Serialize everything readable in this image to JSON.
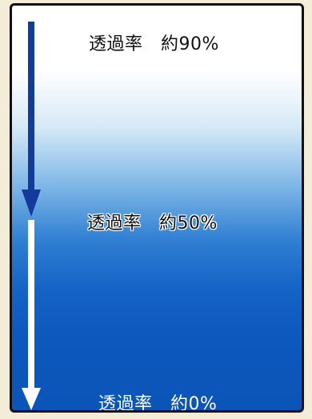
{
  "labels": {
    "top": "透過率　約90%",
    "middle": "透過率　約50%",
    "bottom": "透過率　約0%"
  },
  "colors": {
    "arrow_top": "#123b9c",
    "arrow_bottom": "#ffffff",
    "background_outer": "#f3ecd6",
    "gradient_top": "#ffffff",
    "gradient_bottom": "#0b54b8",
    "border": "#0f0f14"
  }
}
